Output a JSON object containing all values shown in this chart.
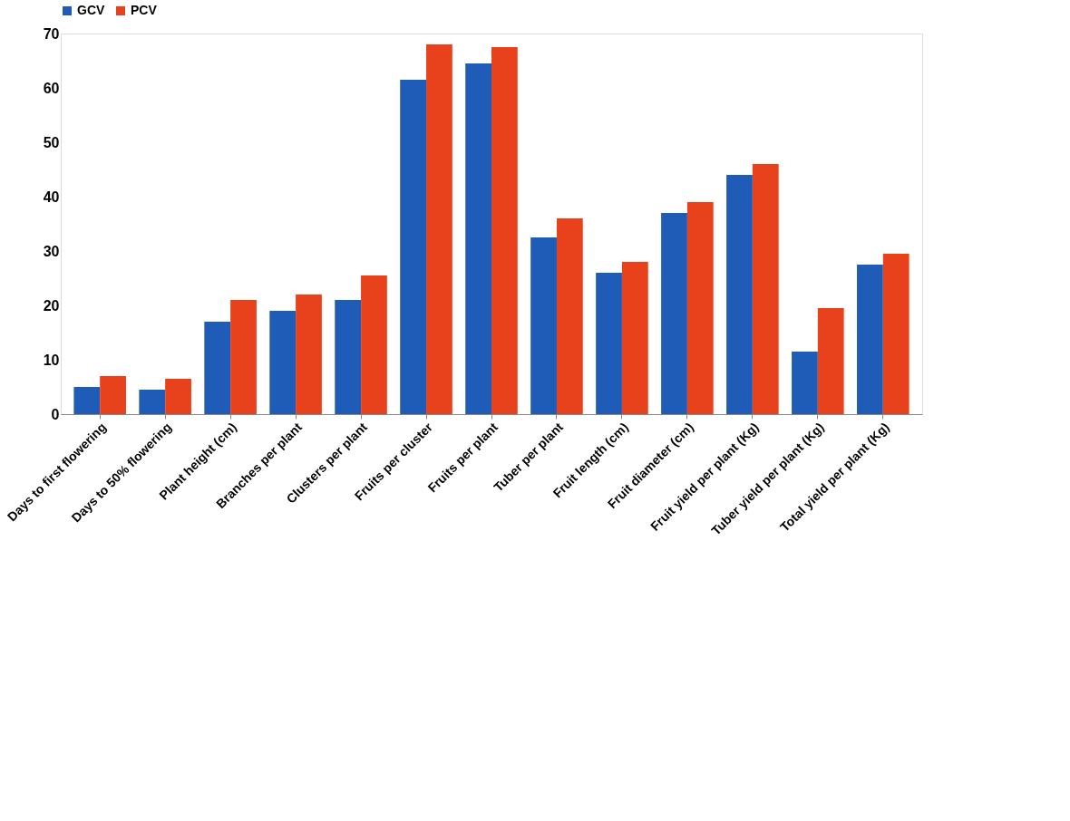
{
  "chart_data": {
    "type": "bar",
    "categories": [
      "Days to first flowering",
      "Days to 50% flowering",
      "Plant height (cm)",
      "Branches per plant",
      "Clusters per plant",
      "Fruits per cluster",
      "Fruits per plant",
      "Tuber per plant",
      "Fruit length (cm)",
      "Fruit diameter (cm)",
      "Fruit yield per plant (Kg)",
      "Tuber yield per plant (Kg)",
      "Total yield per plant (Kg)"
    ],
    "series": [
      {
        "name": "GCV",
        "color": "#1f5cb8",
        "values": [
          5,
          4.5,
          17,
          19,
          21,
          61.5,
          64.5,
          32.5,
          26,
          37,
          44,
          11.5,
          27.5
        ]
      },
      {
        "name": "PCV",
        "color": "#e8421c",
        "values": [
          7,
          6.5,
          21,
          22,
          25.5,
          68,
          67.5,
          36,
          28,
          39,
          46,
          19.5,
          29.5
        ]
      }
    ],
    "ylim": [
      0,
      70
    ],
    "yticks": [
      0,
      10,
      20,
      30,
      40,
      50,
      60,
      70
    ],
    "grid": false,
    "legend": "top"
  }
}
